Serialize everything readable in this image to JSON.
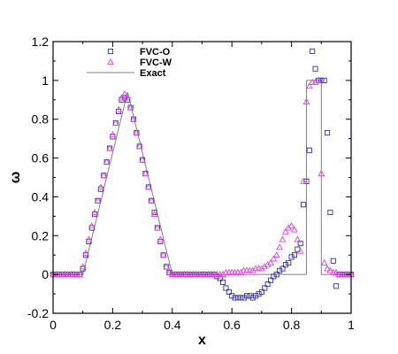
{
  "chart_data": {
    "type": "scatter",
    "xlabel": "x",
    "ylabel": "ω",
    "xlim": [
      0,
      1
    ],
    "ylim": [
      -0.2,
      1.2
    ],
    "xticks": [
      "0",
      "0.2",
      "0.4",
      "0.6",
      "0.8",
      "1"
    ],
    "yticks": [
      "-0.2",
      "0",
      "0.2",
      "0.4",
      "0.6",
      "0.8",
      "1",
      "1.2"
    ],
    "grid": false,
    "legend_position": "top-left",
    "series": [
      {
        "name": "FVC-O",
        "marker": "square",
        "color": "#3030a0",
        "x": [
          0.0,
          0.01,
          0.02,
          0.03,
          0.04,
          0.05,
          0.06,
          0.07,
          0.08,
          0.09,
          0.1,
          0.11,
          0.12,
          0.13,
          0.14,
          0.15,
          0.16,
          0.17,
          0.18,
          0.19,
          0.2,
          0.21,
          0.22,
          0.23,
          0.24,
          0.25,
          0.26,
          0.27,
          0.28,
          0.29,
          0.3,
          0.31,
          0.32,
          0.33,
          0.34,
          0.35,
          0.36,
          0.37,
          0.38,
          0.39,
          0.4,
          0.41,
          0.42,
          0.43,
          0.44,
          0.45,
          0.46,
          0.47,
          0.48,
          0.49,
          0.5,
          0.51,
          0.52,
          0.53,
          0.54,
          0.55,
          0.56,
          0.57,
          0.58,
          0.59,
          0.6,
          0.61,
          0.62,
          0.63,
          0.64,
          0.65,
          0.66,
          0.67,
          0.68,
          0.69,
          0.7,
          0.71,
          0.72,
          0.73,
          0.74,
          0.75,
          0.76,
          0.77,
          0.78,
          0.79,
          0.8,
          0.81,
          0.82,
          0.83,
          0.84,
          0.85,
          0.86,
          0.87,
          0.88,
          0.89,
          0.9,
          0.91,
          0.92,
          0.93,
          0.94,
          0.95,
          0.96,
          0.97,
          0.98,
          0.99,
          1.0
        ],
        "y": [
          0.0,
          0.0,
          0.0,
          0.0,
          0.0,
          0.0,
          0.0,
          0.0,
          0.0,
          0.0,
          0.03,
          0.1,
          0.17,
          0.24,
          0.31,
          0.38,
          0.44,
          0.51,
          0.58,
          0.65,
          0.71,
          0.78,
          0.84,
          0.9,
          0.91,
          0.9,
          0.86,
          0.8,
          0.73,
          0.66,
          0.59,
          0.52,
          0.45,
          0.38,
          0.32,
          0.24,
          0.17,
          0.1,
          0.04,
          0.01,
          0.0,
          0.0,
          0.0,
          0.0,
          0.0,
          0.0,
          0.0,
          0.0,
          0.0,
          0.0,
          0.0,
          0.0,
          0.0,
          0.0,
          0.0,
          -0.01,
          -0.02,
          -0.04,
          -0.07,
          -0.09,
          -0.11,
          -0.12,
          -0.12,
          -0.12,
          -0.12,
          -0.11,
          -0.11,
          -0.12,
          -0.11,
          -0.1,
          -0.09,
          -0.07,
          -0.05,
          -0.03,
          -0.01,
          0.0,
          0.02,
          0.03,
          0.05,
          0.06,
          0.09,
          0.1,
          0.13,
          0.16,
          0.36,
          0.48,
          0.64,
          1.15,
          1.06,
          1.0,
          1.0,
          1.0,
          0.73,
          0.32,
          0.07,
          -0.06,
          0.0,
          0.0,
          0.0,
          0.0,
          0.0
        ]
      },
      {
        "name": "FVC-W",
        "marker": "triangle",
        "color": "#e040e0",
        "x": [
          0.0,
          0.01,
          0.02,
          0.03,
          0.04,
          0.05,
          0.06,
          0.07,
          0.08,
          0.09,
          0.1,
          0.11,
          0.12,
          0.13,
          0.14,
          0.15,
          0.16,
          0.17,
          0.18,
          0.19,
          0.2,
          0.21,
          0.22,
          0.23,
          0.24,
          0.25,
          0.26,
          0.27,
          0.28,
          0.29,
          0.3,
          0.31,
          0.32,
          0.33,
          0.34,
          0.35,
          0.36,
          0.37,
          0.38,
          0.39,
          0.4,
          0.41,
          0.42,
          0.43,
          0.44,
          0.45,
          0.46,
          0.47,
          0.48,
          0.49,
          0.5,
          0.51,
          0.52,
          0.53,
          0.54,
          0.55,
          0.56,
          0.57,
          0.58,
          0.59,
          0.6,
          0.61,
          0.62,
          0.63,
          0.64,
          0.65,
          0.66,
          0.67,
          0.68,
          0.69,
          0.7,
          0.71,
          0.72,
          0.73,
          0.74,
          0.75,
          0.76,
          0.77,
          0.78,
          0.79,
          0.8,
          0.81,
          0.82,
          0.83,
          0.84,
          0.85,
          0.86,
          0.87,
          0.88,
          0.89,
          0.9,
          0.91,
          0.92,
          0.93,
          0.94,
          0.95,
          0.96,
          0.97,
          0.98,
          0.99,
          1.0
        ],
        "y": [
          0.0,
          0.0,
          0.0,
          0.0,
          0.0,
          0.0,
          0.0,
          0.0,
          0.0,
          0.0,
          0.04,
          0.11,
          0.18,
          0.25,
          0.32,
          0.38,
          0.45,
          0.51,
          0.58,
          0.65,
          0.72,
          0.78,
          0.85,
          0.91,
          0.93,
          0.91,
          0.86,
          0.8,
          0.73,
          0.66,
          0.59,
          0.52,
          0.45,
          0.38,
          0.31,
          0.24,
          0.18,
          0.1,
          0.04,
          0.01,
          0.0,
          0.0,
          0.0,
          0.0,
          0.0,
          0.0,
          0.0,
          0.0,
          0.0,
          0.0,
          0.0,
          0.0,
          0.0,
          0.0,
          0.0,
          0.0,
          0.0,
          0.0,
          0.01,
          0.01,
          0.01,
          0.01,
          0.01,
          0.01,
          0.02,
          0.02,
          0.02,
          0.02,
          0.03,
          0.03,
          0.03,
          0.04,
          0.05,
          0.06,
          0.08,
          0.1,
          0.14,
          0.18,
          0.22,
          0.24,
          0.25,
          0.23,
          0.18,
          0.12,
          0.48,
          0.89,
          0.97,
          0.99,
          0.99,
          1.0,
          0.52,
          0.06,
          0.03,
          0.02,
          0.01,
          0.01,
          0.0,
          0.0,
          0.0,
          0.0,
          0.0
        ]
      },
      {
        "name": "Exact",
        "marker": "line",
        "color": "#808080",
        "x": [
          0.0,
          0.1,
          0.25,
          0.4,
          0.85,
          0.85,
          0.9,
          0.9,
          1.0
        ],
        "y": [
          0.0,
          0.0,
          0.94,
          0.0,
          0.0,
          1.0,
          1.0,
          0.0,
          0.0
        ]
      }
    ]
  }
}
